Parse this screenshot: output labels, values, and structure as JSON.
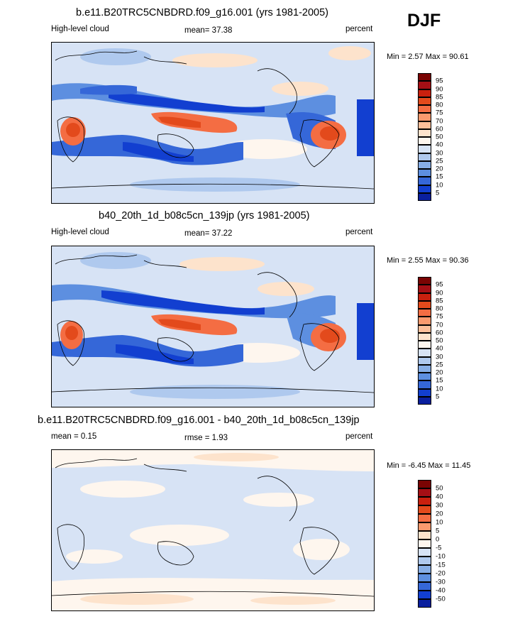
{
  "season": "DJF",
  "panels": [
    {
      "title": "b.e11.B20TRC5CNBDRD.f09_g16.001 (yrs 1981-2005)",
      "left_label": "High-level cloud",
      "center_label": "mean=  37.38",
      "units": "percent",
      "minmax": "Min =   2.57 Max =  90.61"
    },
    {
      "title": "b40_20th_1d_b08c5cn_139jp (yrs 1981-2005)",
      "left_label": "High-level cloud",
      "center_label": "mean=  37.22",
      "units": "percent",
      "minmax": "Min =   2.55 Max =  90.36"
    },
    {
      "title": "b.e11.B20TRC5CNBDRD.f09_g16.001 - b40_20th_1d_b08c5cn_139jp",
      "left_label": "mean =   0.15",
      "center_label": "rmse =   1.93",
      "units": "percent",
      "minmax": "Min =  -6.45 Max =  11.45"
    }
  ],
  "colorbars": {
    "absolute": {
      "labels": [
        "95",
        "90",
        "85",
        "80",
        "75",
        "70",
        "60",
        "50",
        "40",
        "30",
        "25",
        "20",
        "15",
        "10",
        "5"
      ],
      "colors": [
        "#7a0403",
        "#a50f15",
        "#c9200e",
        "#e34a1c",
        "#f46d43",
        "#fb9a6e",
        "#fdbf9a",
        "#fde3cc",
        "#fef6ee",
        "#d7e3f5",
        "#afc9ee",
        "#87aee6",
        "#5d8fe0",
        "#3567d8",
        "#123fd0",
        "#0a1f9e"
      ]
    },
    "difference": {
      "labels": [
        "50",
        "40",
        "30",
        "20",
        "10",
        "5",
        "0",
        "-5",
        "-10",
        "-15",
        "-20",
        "-30",
        "-40",
        "-50"
      ],
      "colors": [
        "#7a0403",
        "#a50f15",
        "#c9200e",
        "#e34a1c",
        "#f46d43",
        "#fb9a6e",
        "#fde3cc",
        "#fef6ee",
        "#d7e3f5",
        "#afc9ee",
        "#87aee6",
        "#5d8fe0",
        "#3567d8",
        "#123fd0",
        "#0a1f9e"
      ]
    }
  }
}
